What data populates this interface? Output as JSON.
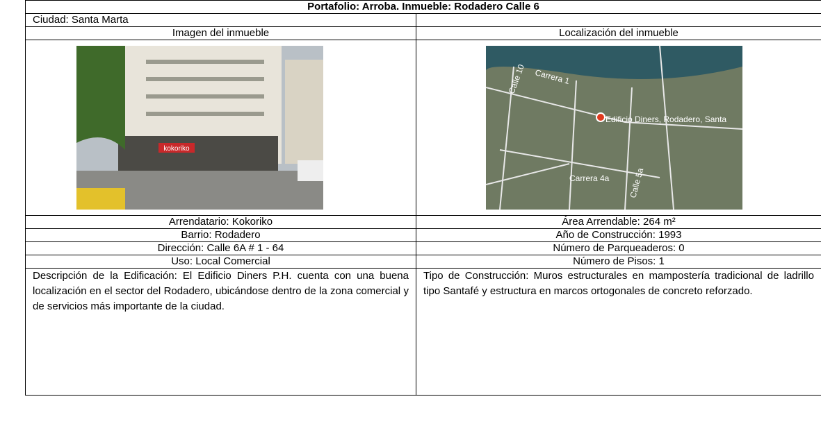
{
  "header": {
    "title": "Portafolio: Arroba. Inmueble: Rodadero Calle 6"
  },
  "city": "Ciudad: Santa Marta",
  "columns": {
    "left": "Imagen del inmueble",
    "right": "Localización del inmueble"
  },
  "photo": {
    "sign": "kokoriko"
  },
  "map": {
    "marker": "Edificio Diners, Rodadero, Santa",
    "streets": [
      "Carrera 1",
      "Carrera 4a",
      "Calle 10",
      "Calle 5a"
    ]
  },
  "table": {
    "rows": [
      [
        "Arrendatario: Kokoriko",
        "Área Arrendable: 264 m²"
      ],
      [
        "Barrio: Rodadero",
        "Año de Construcción: 1993"
      ],
      [
        "Dirección: Calle 6A # 1 - 64",
        "Número de Parqueaderos: 0"
      ],
      [
        "Uso: Local Comercial",
        "Número de Pisos: 1"
      ]
    ]
  },
  "description": {
    "left": "Descripción de la Edificación: El Edificio Diners P.H. cuenta con una buena localización en el sector del Rodadero, ubicándose dentro de la zona comercial y de servicios más importante de la ciudad.",
    "right": "Tipo de Construcción: Muros estructurales en mampostería tradicional de ladrillo tipo Santafé y estructura en marcos ortogonales de concreto reforzado."
  }
}
